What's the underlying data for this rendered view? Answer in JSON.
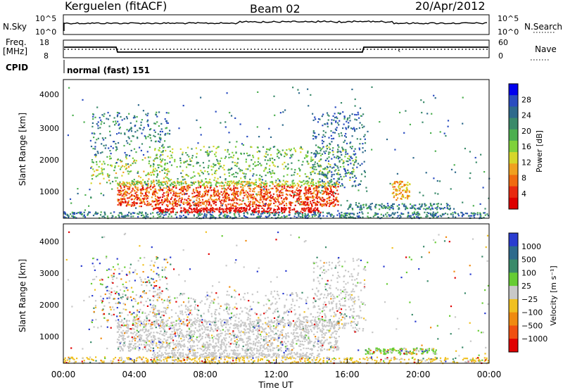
{
  "header": {
    "title": "Kerguelen (fitACF)",
    "beam": "Beam 02",
    "date": "20/Apr/2012"
  },
  "strips": {
    "nsky_label": "N.Sky",
    "nsky_ticks": [
      "10^5",
      "10^0"
    ],
    "nsearch_label": "N.Search",
    "freq_label_line1": "Freq.",
    "freq_label_line2": "[MHz]",
    "freq_ticks": [
      "18",
      "8"
    ],
    "nave_label": "Nave",
    "nave_ticks": [
      "60",
      "0"
    ],
    "cpid_label": "CPID",
    "cpid_value": "normal (fast) 151"
  },
  "chart_data": [
    {
      "type": "heatmap",
      "name_printed": "",
      "ylabel": "Slant Range [km]",
      "ylim": [
        200,
        4600
      ],
      "yticks": [
        "1000",
        "2000",
        "3000",
        "4000"
      ],
      "xlim_hours": [
        0,
        24
      ],
      "colorbar": {
        "label": "Power [dB]",
        "ticks": [
          "4",
          "8",
          "12",
          "16",
          "20",
          "24",
          "28"
        ],
        "colors": [
          "#0000ee",
          "#2a4cc0",
          "#2e6a8c",
          "#3a8a6a",
          "#4caf50",
          "#7fd13a",
          "#d6d62a",
          "#f0a020",
          "#f06a10",
          "#e82a10",
          "#dd0000"
        ]
      }
    },
    {
      "type": "heatmap",
      "name_printed": "",
      "ylabel": "Slant Range [km]",
      "ylim": [
        200,
        4600
      ],
      "yticks": [
        "1000",
        "2000",
        "3000",
        "4000"
      ],
      "xlabel": "Time UT",
      "xticks": [
        "00:00",
        "04:00",
        "08:00",
        "12:00",
        "16:00",
        "20:00",
        "00:00"
      ],
      "xlim_hours": [
        0,
        24
      ],
      "colorbar": {
        "label": "Velocity [m s⁻¹]",
        "ticks": [
          "1000",
          "500",
          "100",
          "25",
          "−25",
          "−100",
          "−500",
          "−1000"
        ],
        "colors": [
          "#2a3cd0",
          "#2e6a8c",
          "#3a8a6a",
          "#66cc33",
          "#c8c8c8",
          "#f0c020",
          "#f08a10",
          "#f05010",
          "#e00000"
        ]
      }
    }
  ],
  "colors": {
    "grey": "#c8c8c8",
    "ground": "#777777"
  }
}
